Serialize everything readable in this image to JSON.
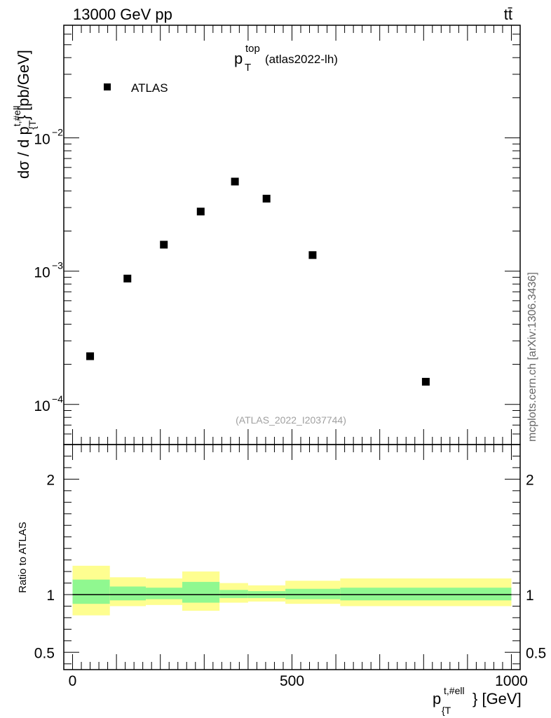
{
  "header": {
    "energy": "13000 GeV pp",
    "process": "tt̄"
  },
  "side_label": "mcplots.cern.ch [arXiv:1306.3436]",
  "chart_data": {
    "type": "scatter",
    "title": {
      "main": "p",
      "sup": "top",
      "sub": "T",
      "tag": "(atlas2022-lh)"
    },
    "analysis_id": "(ATLAS_2022_I2037744)",
    "legend": {
      "label": "ATLAS",
      "placement": "top-left",
      "marker": "square"
    },
    "upper": {
      "ylabel": {
        "pre": "dσ / d p",
        "sup": "t,#ell",
        "sub": "{T",
        "post": "} [pb/GeV]"
      },
      "yscale": "log",
      "ylim": [
        5e-05,
        0.07
      ],
      "ytick_labels": [
        "10",
        "10",
        "10"
      ],
      "ytick_exponents": [
        "−2",
        "−3",
        "−4"
      ],
      "ytick_values": [
        0.01,
        0.001,
        0.0001
      ]
    },
    "series": [
      {
        "name": "ATLAS",
        "x": [
          40,
          125,
          208,
          292,
          370,
          442,
          547,
          805
        ],
        "y": [
          0.00023,
          0.00088,
          0.00158,
          0.0028,
          0.0047,
          0.0035,
          0.00132,
          0.000148
        ]
      }
    ],
    "ratio": {
      "ylabel": "Ratio to ATLAS",
      "ylim": [
        0.35,
        2.3
      ],
      "ytick_values": [
        0.5,
        1,
        2
      ],
      "ytick_labels": [
        "0.5",
        "1",
        "2"
      ],
      "reference": 1,
      "bins": [
        {
          "x0": 0,
          "x1": 85,
          "inner": [
            0.92,
            1.13
          ],
          "outer": [
            0.82,
            1.25
          ]
        },
        {
          "x0": 85,
          "x1": 167,
          "inner": [
            0.95,
            1.07
          ],
          "outer": [
            0.9,
            1.15
          ]
        },
        {
          "x0": 167,
          "x1": 250,
          "inner": [
            0.96,
            1.06
          ],
          "outer": [
            0.91,
            1.14
          ]
        },
        {
          "x0": 250,
          "x1": 335,
          "inner": [
            0.93,
            1.11
          ],
          "outer": [
            0.86,
            1.2
          ]
        },
        {
          "x0": 335,
          "x1": 400,
          "inner": [
            0.97,
            1.04
          ],
          "outer": [
            0.93,
            1.1
          ]
        },
        {
          "x0": 400,
          "x1": 485,
          "inner": [
            0.97,
            1.03
          ],
          "outer": [
            0.94,
            1.08
          ]
        },
        {
          "x0": 485,
          "x1": 610,
          "inner": [
            0.96,
            1.05
          ],
          "outer": [
            0.92,
            1.12
          ]
        },
        {
          "x0": 610,
          "x1": 1000,
          "inner": [
            0.95,
            1.06
          ],
          "outer": [
            0.9,
            1.14
          ]
        }
      ]
    },
    "xaxis": {
      "label": {
        "pre": "p",
        "sup": "t,#ell",
        "sub": "{T",
        "post": "} [GeV]"
      },
      "xlim": [
        -20,
        1020
      ],
      "tick_values": [
        0,
        500,
        1000
      ],
      "tick_labels": [
        "0",
        "500",
        "1000"
      ]
    },
    "colors": {
      "inner_band": "#90f890",
      "outer_band": "#fefe90",
      "marker": "#000000"
    }
  }
}
